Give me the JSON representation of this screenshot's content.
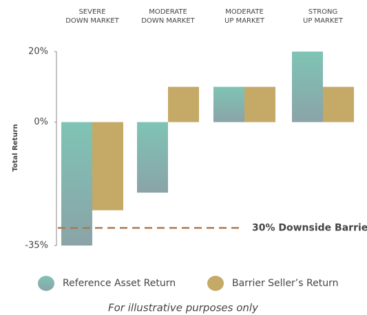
{
  "chart_data": {
    "type": "bar",
    "categories": [
      [
        "SEVERE",
        "DOWN MARKET"
      ],
      [
        "MODERATE",
        "DOWN MARKET"
      ],
      [
        "MODERATE",
        "UP MARKET"
      ],
      [
        "STRONG",
        "UP MARKET"
      ]
    ],
    "series": [
      {
        "name": "Reference Asset Return",
        "color": "#7fc4b4",
        "values": [
          -35,
          -20,
          10,
          20
        ]
      },
      {
        "name": "Barrier Seller’s Return",
        "color": "#c5a966",
        "values": [
          -25,
          10,
          10,
          10
        ]
      }
    ],
    "ylabel": "Total Return",
    "ylim": [
      -35,
      20
    ],
    "yticks": [
      {
        "value": 20,
        "label": "20%"
      },
      {
        "value": 0,
        "label": "0%"
      },
      {
        "value": -35,
        "label": "-35%"
      }
    ],
    "barrier": {
      "value": -30,
      "label": "30% Downside Barrier",
      "color": "#b0784a"
    },
    "note": "For illustrative purposes only",
    "grid": false
  }
}
